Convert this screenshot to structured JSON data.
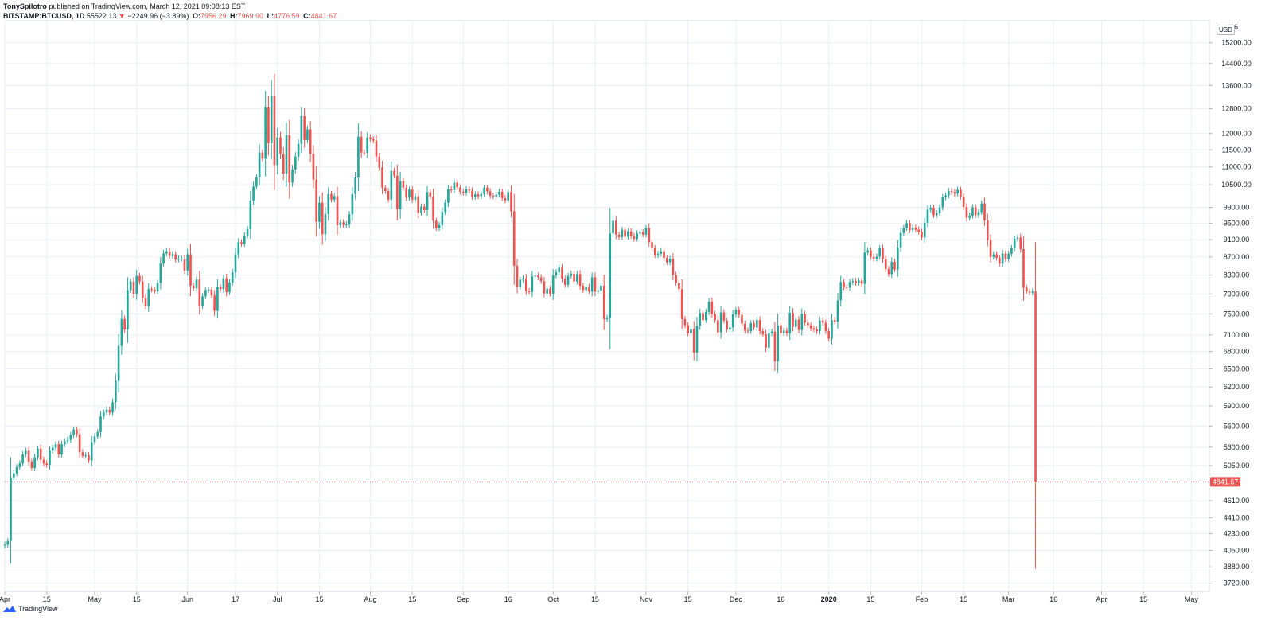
{
  "header": {
    "author": "TonySpilotro",
    "published_text": "published on TradingView.com, March 12, 2021 09:08:13 EST"
  },
  "legend": {
    "symbol": "BITSTAMP:BTCUSD, 1D",
    "last": "55522.13",
    "change_arrow": "▼",
    "change": "−2249.96 (−3.89%)",
    "open_label": "O:",
    "open": "7956.29",
    "high_label": "H:",
    "high": "7969.90",
    "low_label": "L:",
    "low": "4776.59",
    "close_label": "C:",
    "close": "4841.67"
  },
  "footer": {
    "brand": "TradingView"
  },
  "currency_badge": "USD",
  "colors": {
    "up": "#26a69a",
    "down": "#ef5350",
    "grid": "#e9eef5",
    "axis_text": "#131722"
  },
  "chart_data": {
    "type": "candlestick",
    "y_scale": "log",
    "ylim": [
      3640,
      16100
    ],
    "y_ticks": [
      3720,
      3880,
      4050,
      4230,
      4410,
      4610,
      5050,
      5300,
      5600,
      5900,
      6200,
      6500,
      6800,
      7100,
      7500,
      7900,
      8300,
      8700,
      9100,
      9500,
      9900,
      10500,
      11000,
      11500,
      12000,
      12800,
      13600,
      14400,
      15200
    ],
    "y_tick_labels": [
      "3720.00",
      "3880.00",
      "4050.00",
      "4230.00",
      "4410.00",
      "4610.00",
      "5050.00",
      "5300.00",
      "5600.00",
      "5900.00",
      "6200.00",
      "6500.00",
      "6800.00",
      "7100.00",
      "7500.00",
      "7900.00",
      "8300.00",
      "8700.00",
      "9100.00",
      "9500.00",
      "9900.00",
      "10500.00",
      "11000.00",
      "11500.00",
      "12000.00",
      "12800.00",
      "13600.00",
      "14400.00",
      "15200.00"
    ],
    "y_top_partial_label": "16",
    "x_start": "2019-04-01",
    "x_end": "2020-05-07",
    "x_ticks": [
      {
        "date": "2019-04-01",
        "label": "Apr"
      },
      {
        "date": "2019-04-15",
        "label": "15"
      },
      {
        "date": "2019-05-01",
        "label": "May"
      },
      {
        "date": "2019-05-15",
        "label": "15"
      },
      {
        "date": "2019-06-01",
        "label": "Jun"
      },
      {
        "date": "2019-06-17",
        "label": "17"
      },
      {
        "date": "2019-07-01",
        "label": "Jul"
      },
      {
        "date": "2019-07-15",
        "label": "15"
      },
      {
        "date": "2019-08-01",
        "label": "Aug"
      },
      {
        "date": "2019-08-15",
        "label": "15"
      },
      {
        "date": "2019-09-01",
        "label": "Sep"
      },
      {
        "date": "2019-09-16",
        "label": "16"
      },
      {
        "date": "2019-10-01",
        "label": "Oct"
      },
      {
        "date": "2019-10-15",
        "label": "15"
      },
      {
        "date": "2019-11-01",
        "label": "Nov"
      },
      {
        "date": "2019-11-15",
        "label": "15"
      },
      {
        "date": "2019-12-01",
        "label": "Dec"
      },
      {
        "date": "2019-12-16",
        "label": "16"
      },
      {
        "date": "2020-01-01",
        "label": "2020"
      },
      {
        "date": "2020-01-15",
        "label": "15"
      },
      {
        "date": "2020-02-01",
        "label": "Feb"
      },
      {
        "date": "2020-02-15",
        "label": "15"
      },
      {
        "date": "2020-03-01",
        "label": "Mar"
      },
      {
        "date": "2020-03-16",
        "label": "16"
      },
      {
        "date": "2020-04-01",
        "label": "Apr"
      },
      {
        "date": "2020-04-15",
        "label": "15"
      },
      {
        "date": "2020-05-01",
        "label": "May"
      }
    ],
    "last_price": 4841.67,
    "last_price_label": "4841.67",
    "closes_start": "2019-04-01",
    "open_start": 4100,
    "closes": [
      4110,
      4150,
      4900,
      4950,
      5030,
      5080,
      5200,
      5250,
      5100,
      5020,
      5160,
      5280,
      5130,
      5080,
      5060,
      5250,
      5290,
      5340,
      5200,
      5340,
      5380,
      5400,
      5470,
      5550,
      5480,
      5230,
      5180,
      5190,
      5120,
      5370,
      5450,
      5510,
      5740,
      5800,
      5840,
      5800,
      5960,
      6300,
      6900,
      7400,
      7200,
      7980,
      8160,
      7900,
      8280,
      8160,
      7820,
      7650,
      8000,
      7990,
      7950,
      8130,
      8550,
      8780,
      8830,
      8720,
      8760,
      8640,
      8660,
      8660,
      8400,
      8760,
      8070,
      8020,
      8200,
      7660,
      7850,
      7980,
      7990,
      7870,
      7560,
      8040,
      8000,
      8230,
      7940,
      8140,
      8360,
      8760,
      9040,
      9000,
      9200,
      9350,
      10080,
      10450,
      10700,
      11420,
      11240,
      12850,
      11700,
      13250,
      11050,
      11880,
      11380,
      10810,
      11950,
      10560,
      10930,
      11300,
      11680,
      12550,
      11800,
      12130,
      11380,
      10640,
      9530,
      10020,
      9230,
      9730,
      10250,
      10100,
      10190,
      9450,
      9520,
      9460,
      9470,
      9720,
      10250,
      10700,
      11900,
      11420,
      11410,
      11880,
      11820,
      11780,
      11300,
      10980,
      10420,
      10330,
      10100,
      10890,
      10750,
      9850,
      10600,
      10420,
      10150,
      10370,
      10100,
      10190,
      9760,
      9920,
      9830,
      10300,
      10180,
      9560,
      9380,
      9450,
      9780,
      10020,
      10380,
      10350,
      10560,
      10430,
      10310,
      10280,
      10380,
      10340,
      10170,
      10240,
      10190,
      10250,
      10420,
      10320,
      10200,
      10180,
      10230,
      10310,
      10140,
      10080,
      10300,
      9800,
      8500,
      8050,
      8200,
      8230,
      7960,
      7940,
      8270,
      8290,
      8250,
      8170,
      7910,
      8010,
      7900,
      8290,
      8360,
      8460,
      8220,
      8090,
      8280,
      8330,
      8160,
      8320,
      8070,
      7980,
      8050,
      7950,
      8250,
      7950,
      7970,
      8070,
      7400,
      7420,
      9250,
      9560,
      9220,
      9160,
      9340,
      9170,
      9300,
      9190,
      9120,
      9250,
      9280,
      9220,
      9380,
      9040,
      8900,
      8740,
      8770,
      8830,
      8680,
      8580,
      8660,
      8300,
      8130,
      8000,
      7400,
      7280,
      7130,
      7210,
      6780,
      7270,
      7520,
      7380,
      7540,
      7740,
      7500,
      7380,
      7150,
      7530,
      7370,
      7200,
      7240,
      7490,
      7580,
      7480,
      7310,
      7180,
      7170,
      7320,
      7240,
      7380,
      7170,
      7110,
      6870,
      7130,
      7160,
      6630,
      7280,
      7130,
      7180,
      7130,
      7520,
      7250,
      7390,
      7190,
      7500,
      7330,
      7280,
      7220,
      7200,
      7170,
      7370,
      7330,
      7170,
      7030,
      7380,
      7350,
      7770,
      8150,
      8040,
      8030,
      8150,
      8170,
      8130,
      8180,
      8110,
      8800,
      8850,
      8700,
      8660,
      8710,
      8900,
      8650,
      8430,
      8320,
      8590,
      8420,
      8920,
      9260,
      9380,
      9500,
      9330,
      9390,
      9340,
      9290,
      9150,
      9510,
      9840,
      9890,
      9700,
      9750,
      9900,
      10160,
      10210,
      10330,
      10300,
      10260,
      10360,
      10170,
      9910,
      9630,
      9690,
      9900,
      9700,
      9780,
      10000,
      9570,
      9090,
      8700,
      8760,
      8680,
      8550,
      8780,
      8650,
      8770,
      8900,
      9120,
      9150,
      8880,
      8030,
      7950,
      7930,
      7950,
      4841.67
    ]
  }
}
